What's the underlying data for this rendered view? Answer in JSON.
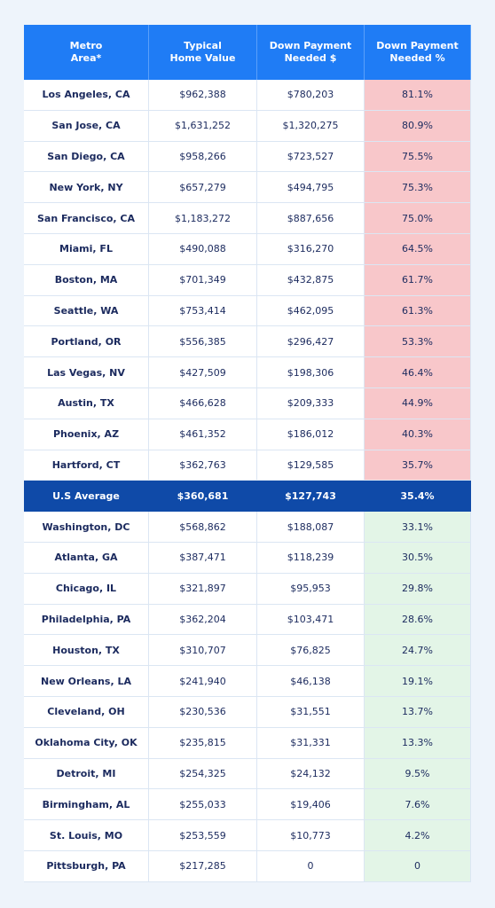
{
  "table": {
    "header": [
      [
        "Metro",
        "Area*"
      ],
      [
        "Typical",
        "Home Value"
      ],
      [
        "Down Payment",
        "Needed $"
      ],
      [
        "Down Payment",
        "Needed %"
      ]
    ],
    "rows": [
      [
        "Los Angeles, CA",
        "$962,388",
        "$780,203",
        "81.1%"
      ],
      [
        "San Jose, CA",
        "$1,631,252",
        "$1,320,275",
        "80.9%"
      ],
      [
        "San Diego, CA",
        "$958,266",
        "$723,527",
        "75.5%"
      ],
      [
        "New York, NY",
        "$657,279",
        "$494,795",
        "75.3%"
      ],
      [
        "San Francisco, CA",
        "$1,183,272",
        "$887,656",
        "75.0%"
      ],
      [
        "Miami, FL",
        "$490,088",
        "$316,270",
        "64.5%"
      ],
      [
        "Boston, MA",
        "$701,349",
        "$432,875",
        "61.7%"
      ],
      [
        "Seattle, WA",
        "$753,414",
        "$462,095",
        "61.3%"
      ],
      [
        "Portland, OR",
        "$556,385",
        "$296,427",
        "53.3%"
      ],
      [
        "Las Vegas, NV",
        "$427,509",
        "$198,306",
        "46.4%"
      ],
      [
        "Austin, TX",
        "$466,628",
        "$209,333",
        "44.9%"
      ],
      [
        "Phoenix, AZ",
        "$461,352",
        "$186,012",
        "40.3%"
      ],
      [
        "Hartford, CT",
        "$362,763",
        "$129,585",
        "35.7%"
      ],
      [
        "U.S Average",
        "$360,681",
        "$127,743",
        "35.4%"
      ],
      [
        "Washington, DC",
        "$568,862",
        "$188,087",
        "33.1%"
      ],
      [
        "Atlanta, GA",
        "$387,471",
        "$118,239",
        "30.5%"
      ],
      [
        "Chicago, IL",
        "$321,897",
        "$95,953",
        "29.8%"
      ],
      [
        "Philadelphia, PA",
        "$362,204",
        "$103,471",
        "28.6%"
      ],
      [
        "Houston, TX",
        "$310,707",
        "$76,825",
        "24.7%"
      ],
      [
        "New Orleans, LA",
        "$241,940",
        "$46,138",
        "19.1%"
      ],
      [
        "Cleveland, OH",
        "$230,536",
        "$31,551",
        "13.7%"
      ],
      [
        "Oklahoma City, OK",
        "$235,815",
        "$31,331",
        "13.3%"
      ],
      [
        "Detroit, MI",
        "$254,325",
        "$24,132",
        "9.5%"
      ],
      [
        "Birmingham, AL",
        "$255,033",
        "$19,406",
        "7.6%"
      ],
      [
        "St. Louis, MO",
        "$253,559",
        "$10,773",
        "4.2%"
      ],
      [
        "Pittsburgh, PA",
        "$217,285",
        "0",
        "0"
      ]
    ]
  }
}
